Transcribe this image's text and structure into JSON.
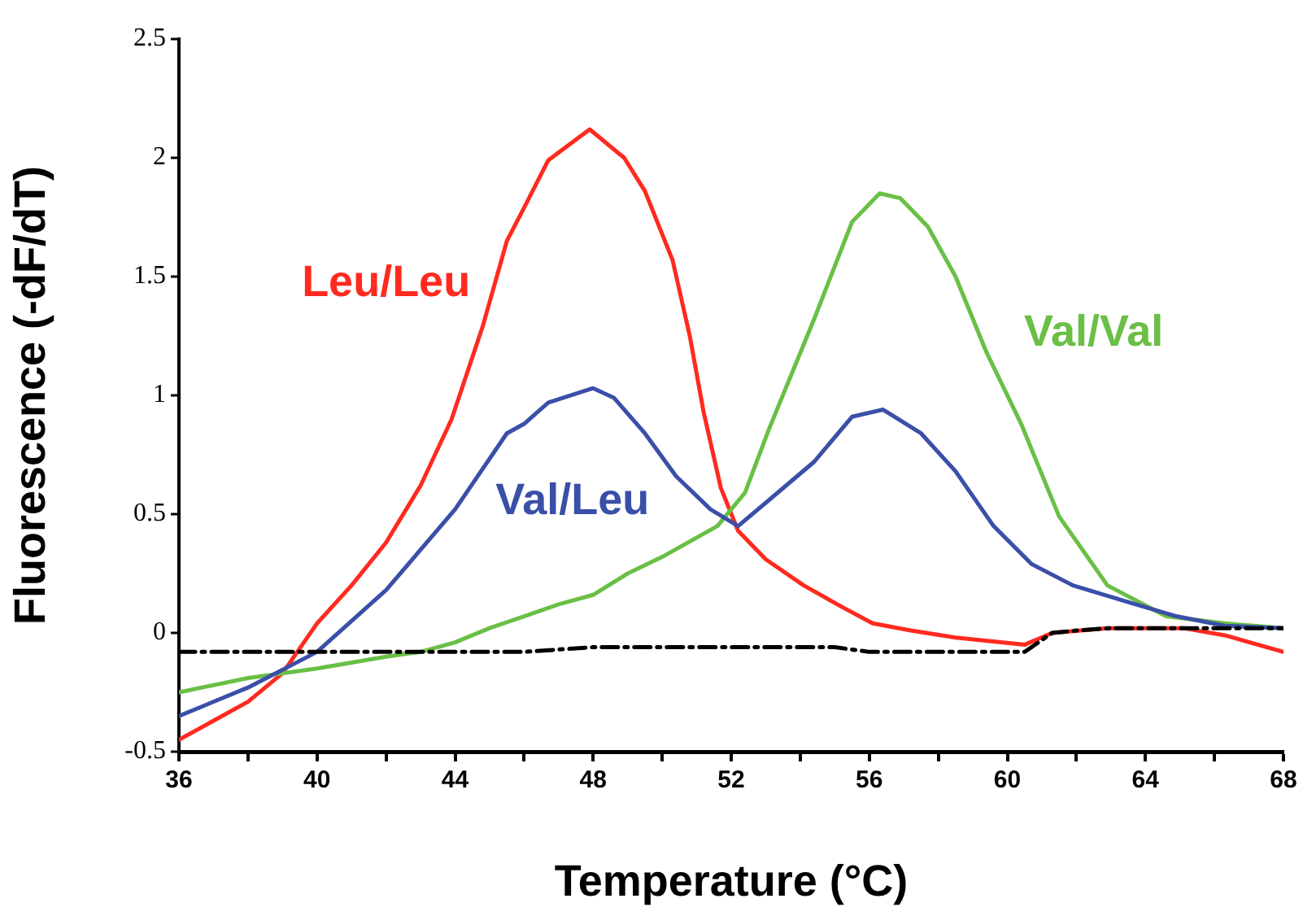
{
  "chart_data": {
    "type": "line",
    "xlabel": "Temperature (°C)",
    "ylabel": "Fluorescence (-dF/dT)",
    "xlim": [
      36,
      68
    ],
    "ylim": [
      -0.5,
      2.5
    ],
    "xticks": [
      36,
      {
        "value": 38,
        "label": null
      },
      40,
      {
        "value": 42,
        "label": null
      },
      44,
      {
        "value": 46,
        "label": null
      },
      48,
      {
        "value": 50,
        "label": null
      },
      52,
      {
        "value": 54,
        "label": null
      },
      56,
      {
        "value": 58,
        "label": null
      },
      60,
      {
        "value": 62,
        "label": null
      },
      64,
      {
        "value": 66,
        "label": null
      },
      68
    ],
    "yticks": [
      -0.5,
      0,
      0.5,
      1,
      1.5,
      2,
      2.5
    ],
    "grid": false,
    "legend": false,
    "marker": "none",
    "series": [
      {
        "name": "Leu/Leu",
        "color": "#ff2a1f",
        "x": [
          36,
          37,
          38,
          39,
          40,
          41,
          42,
          43,
          43.9,
          44.8,
          45.5,
          46,
          46.7,
          47.9,
          48.9,
          49.5,
          50.3,
          50.8,
          51.2,
          51.7,
          52.2,
          53,
          54.1,
          55.2,
          56.1,
          57.2,
          58.5,
          60.5,
          61.3,
          62.9,
          65.1,
          66.3,
          68
        ],
        "values": [
          -0.45,
          -0.37,
          -0.29,
          -0.17,
          0.04,
          0.2,
          0.38,
          0.62,
          0.9,
          1.29,
          1.65,
          1.79,
          1.99,
          2.12,
          2.0,
          1.86,
          1.57,
          1.25,
          0.93,
          0.61,
          0.43,
          0.31,
          0.2,
          0.11,
          0.04,
          0.01,
          -0.02,
          -0.05,
          0,
          0.02,
          0.02,
          -0.01,
          -0.08
        ]
      },
      {
        "name": "Val/Val",
        "color": "#6abf45",
        "x": [
          36,
          38,
          40,
          42,
          43,
          44,
          45,
          46,
          47,
          48,
          49,
          50,
          51.6,
          52.4,
          53.1,
          54.4,
          55.5,
          56.3,
          56.9,
          57.7,
          58.5,
          59.4,
          60.4,
          61.5,
          62.9,
          64.6,
          66.3,
          68
        ],
        "values": [
          -0.25,
          -0.19,
          -0.15,
          -0.1,
          -0.08,
          -0.04,
          0.02,
          0.07,
          0.12,
          0.16,
          0.25,
          0.32,
          0.45,
          0.59,
          0.86,
          1.32,
          1.73,
          1.85,
          1.83,
          1.71,
          1.5,
          1.18,
          0.88,
          0.49,
          0.2,
          0.07,
          0.04,
          0.02
        ]
      },
      {
        "name": "Val/Leu",
        "color": "#3a4fa8",
        "x": [
          36,
          38,
          40,
          42,
          44,
          45.5,
          46,
          46.7,
          48,
          48.6,
          49.5,
          50.4,
          51.4,
          52.2,
          53.1,
          54.4,
          55.5,
          56.4,
          57.5,
          58.5,
          59.6,
          60.7,
          61.9,
          63.5,
          64.9,
          66.3,
          68
        ],
        "values": [
          -0.35,
          -0.23,
          -0.08,
          0.18,
          0.52,
          0.84,
          0.88,
          0.97,
          1.03,
          0.99,
          0.84,
          0.66,
          0.52,
          0.45,
          0.56,
          0.72,
          0.91,
          0.94,
          0.84,
          0.68,
          0.45,
          0.29,
          0.2,
          0.13,
          0.07,
          0.03,
          0.02
        ]
      },
      {
        "color": "#000000",
        "line_style": "dashed",
        "x": [
          36,
          40,
          44,
          46,
          48,
          52,
          55,
          56,
          60.5,
          61.3,
          62,
          63,
          68
        ],
        "values": [
          -0.08,
          -0.08,
          -0.08,
          -0.08,
          -0.06,
          -0.06,
          -0.06,
          -0.08,
          -0.08,
          0,
          0.01,
          0.02,
          0.02
        ]
      }
    ]
  }
}
